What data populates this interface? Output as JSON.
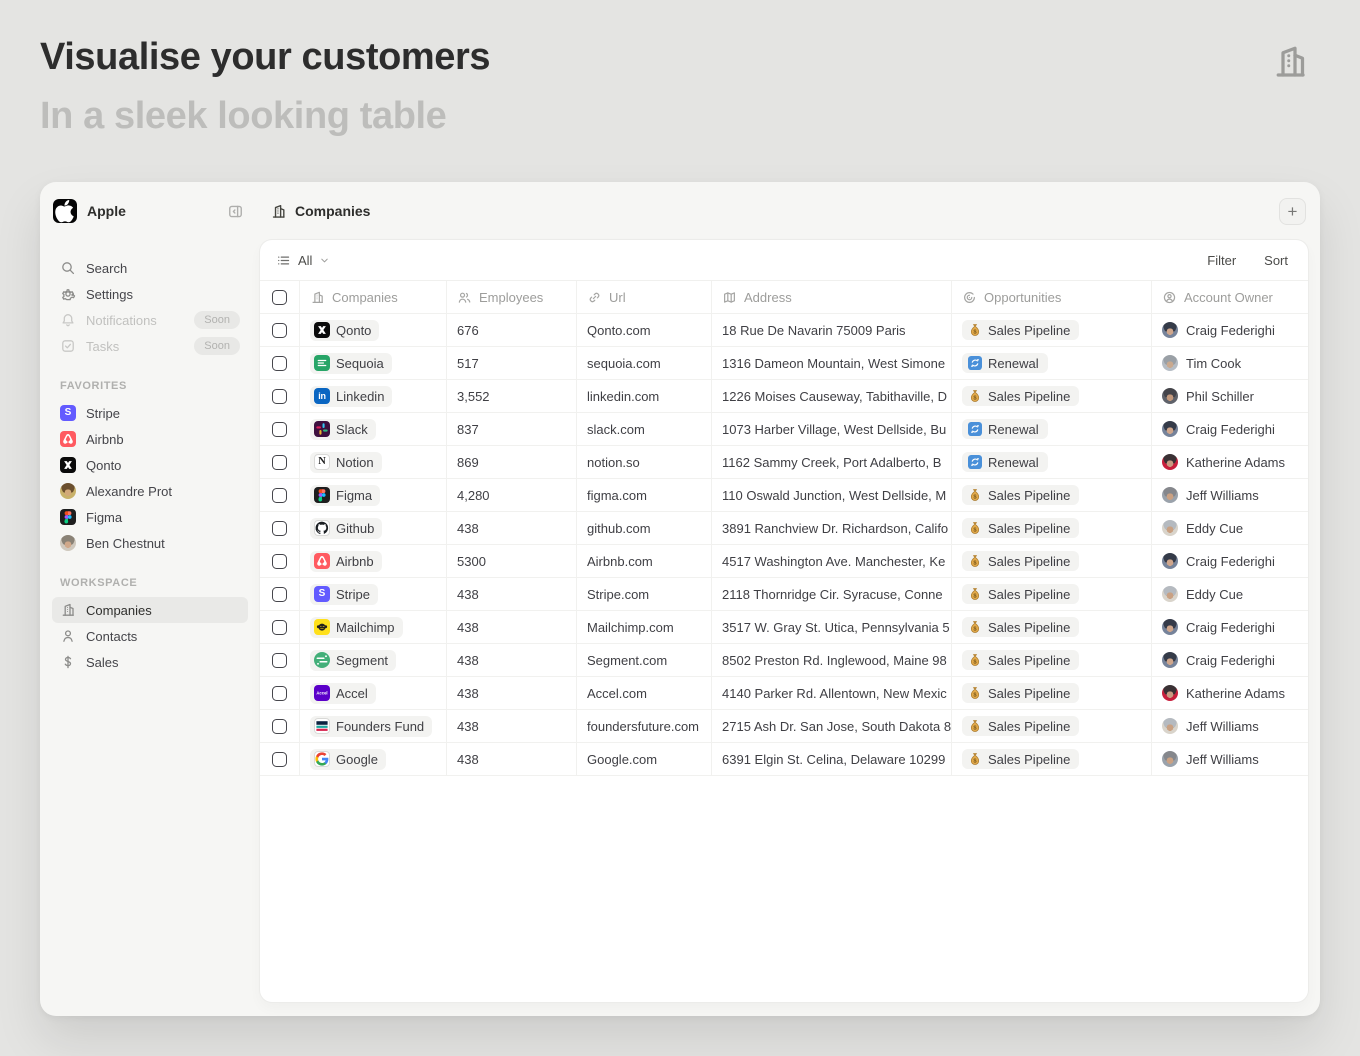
{
  "page": {
    "title": "Visualise your customers",
    "subtitle": "In a sleek looking table"
  },
  "window": {
    "workspace_name": "Apple",
    "view_title": "Companies",
    "add_button": "+"
  },
  "sidebar": {
    "nav": [
      {
        "label": "Search",
        "icon": "search"
      },
      {
        "label": "Settings",
        "icon": "gear"
      },
      {
        "label": "Notifications",
        "icon": "bell",
        "badge": "Soon",
        "disabled": true
      },
      {
        "label": "Tasks",
        "icon": "task",
        "badge": "Soon",
        "disabled": true
      }
    ],
    "favorites_label": "FAVORITES",
    "favorites": [
      {
        "label": "Stripe",
        "logo": "stripe"
      },
      {
        "label": "Airbnb",
        "logo": "airbnb"
      },
      {
        "label": "Qonto",
        "logo": "qonto"
      },
      {
        "label": "Alexandre Prot",
        "avatar": "alexandre"
      },
      {
        "label": "Figma",
        "logo": "figma"
      },
      {
        "label": "Ben Chestnut",
        "avatar": "ben"
      }
    ],
    "workspace_label": "WORKSPACE",
    "workspace": [
      {
        "label": "Companies",
        "icon": "building",
        "selected": true
      },
      {
        "label": "Contacts",
        "icon": "person"
      },
      {
        "label": "Sales",
        "icon": "dollar"
      }
    ]
  },
  "toolbar": {
    "view_selector": "All",
    "filter": "Filter",
    "sort": "Sort"
  },
  "table": {
    "columns": [
      {
        "label": "Companies",
        "icon": "building"
      },
      {
        "label": "Employees",
        "icon": "people"
      },
      {
        "label": "Url",
        "icon": "link"
      },
      {
        "label": "Address",
        "icon": "map"
      },
      {
        "label": "Opportunities",
        "icon": "target"
      },
      {
        "label": "Account Owner",
        "icon": "person-circle"
      }
    ],
    "rows": [
      {
        "company": "Qonto",
        "logo": "qonto",
        "employees": "676",
        "url": "Qonto.com",
        "address": "18 Rue De Navarin 75009 Paris",
        "opportunity": {
          "label": "Sales Pipeline",
          "icon": "moneybag"
        },
        "owner": {
          "name": "Craig Federighi",
          "avatar": "craig"
        }
      },
      {
        "company": "Sequoia",
        "logo": "sequoia",
        "employees": "517",
        "url": "sequoia.com",
        "address": "1316 Dameon Mountain, West Simone",
        "opportunity": {
          "label": "Renewal",
          "icon": "renewal"
        },
        "owner": {
          "name": "Tim Cook",
          "avatar": "tim"
        }
      },
      {
        "company": "Linkedin",
        "logo": "linkedin",
        "employees": "3,552",
        "url": "linkedin.com",
        "address": "1226 Moises Causeway, Tabithaville, D",
        "opportunity": {
          "label": "Sales Pipeline",
          "icon": "moneybag"
        },
        "owner": {
          "name": "Phil Schiller",
          "avatar": "phil"
        }
      },
      {
        "company": "Slack",
        "logo": "slack",
        "employees": "837",
        "url": "slack.com",
        "address": "1073 Harber Village, West Dellside, Bu",
        "opportunity": {
          "label": "Renewal",
          "icon": "renewal"
        },
        "owner": {
          "name": "Craig Federighi",
          "avatar": "craig"
        }
      },
      {
        "company": "Notion",
        "logo": "notion",
        "employees": "869",
        "url": "notion.so",
        "address": "1162 Sammy Creek, Port Adalberto, B",
        "opportunity": {
          "label": "Renewal",
          "icon": "renewal"
        },
        "owner": {
          "name": "Katherine Adams",
          "avatar": "katherine"
        }
      },
      {
        "company": "Figma",
        "logo": "figma",
        "employees": "4,280",
        "url": "figma.com",
        "address": "110 Oswald Junction, West Dellside, M",
        "opportunity": {
          "label": "Sales Pipeline",
          "icon": "moneybag"
        },
        "owner": {
          "name": "Jeff Williams",
          "avatar": "jeff"
        }
      },
      {
        "company": "Github",
        "logo": "github",
        "employees": "438",
        "url": "github.com",
        "address": "3891 Ranchview Dr. Richardson, Califo",
        "opportunity": {
          "label": "Sales Pipeline",
          "icon": "moneybag"
        },
        "owner": {
          "name": "Eddy Cue",
          "avatar": "eddy"
        }
      },
      {
        "company": "Airbnb",
        "logo": "airbnb",
        "employees": "5300",
        "url": "Airbnb.com",
        "address": "4517 Washington Ave. Manchester, Ke",
        "opportunity": {
          "label": "Sales Pipeline",
          "icon": "moneybag"
        },
        "owner": {
          "name": "Craig Federighi",
          "avatar": "craig"
        }
      },
      {
        "company": "Stripe",
        "logo": "stripe",
        "employees": "438",
        "url": "Stripe.com",
        "address": "2118 Thornridge Cir. Syracuse, Conne",
        "opportunity": {
          "label": "Sales Pipeline",
          "icon": "moneybag"
        },
        "owner": {
          "name": "Eddy Cue",
          "avatar": "eddy"
        }
      },
      {
        "company": "Mailchimp",
        "logo": "mailchimp",
        "employees": "438",
        "url": "Mailchimp.com",
        "address": "3517 W. Gray St. Utica, Pennsylvania 5",
        "opportunity": {
          "label": "Sales Pipeline",
          "icon": "moneybag"
        },
        "owner": {
          "name": "Craig Federighi",
          "avatar": "craig"
        }
      },
      {
        "company": "Segment",
        "logo": "segment",
        "employees": "438",
        "url": "Segment.com",
        "address": "8502 Preston Rd. Inglewood, Maine 98",
        "opportunity": {
          "label": "Sales Pipeline",
          "icon": "moneybag"
        },
        "owner": {
          "name": "Craig Federighi",
          "avatar": "craig"
        }
      },
      {
        "company": "Accel",
        "logo": "accel",
        "employees": "438",
        "url": "Accel.com",
        "address": "4140 Parker Rd. Allentown, New Mexic",
        "opportunity": {
          "label": "Sales Pipeline",
          "icon": "moneybag"
        },
        "owner": {
          "name": "Katherine Adams",
          "avatar": "katherine"
        }
      },
      {
        "company": "Founders Fund",
        "logo": "foundersfund",
        "employees": "438",
        "url": "foundersfuture.com",
        "address": "2715 Ash Dr. San Jose, South Dakota 8",
        "opportunity": {
          "label": "Sales Pipeline",
          "icon": "moneybag"
        },
        "owner": {
          "name": "Jeff Williams",
          "avatar": "eddy"
        }
      },
      {
        "company": "Google",
        "logo": "google",
        "employees": "438",
        "url": "Google.com",
        "address": "6391 Elgin St. Celina, Delaware 10299",
        "opportunity": {
          "label": "Sales Pipeline",
          "icon": "moneybag"
        },
        "owner": {
          "name": "Jeff Williams",
          "avatar": "jeff"
        }
      }
    ]
  },
  "brand_colors": {
    "stripe": "#635bff",
    "airbnb": "#ff5a60",
    "qonto": "#0a0a0a",
    "figma": "#1e1e1e",
    "linkedin": "#0a66c2",
    "slack": "#3e103f",
    "sequoia": "#27a567",
    "notion": "#ffffff",
    "github": "#ffffff",
    "mailchimp": "#ffe01b",
    "segment": "#43af79",
    "accel": "#5b00c9",
    "foundersfund": "#ffffff",
    "google": "#ffffff"
  },
  "status_colors": {
    "renewal_blue": "#4a90d9",
    "moneybag_gold": "#e3aa4a"
  }
}
